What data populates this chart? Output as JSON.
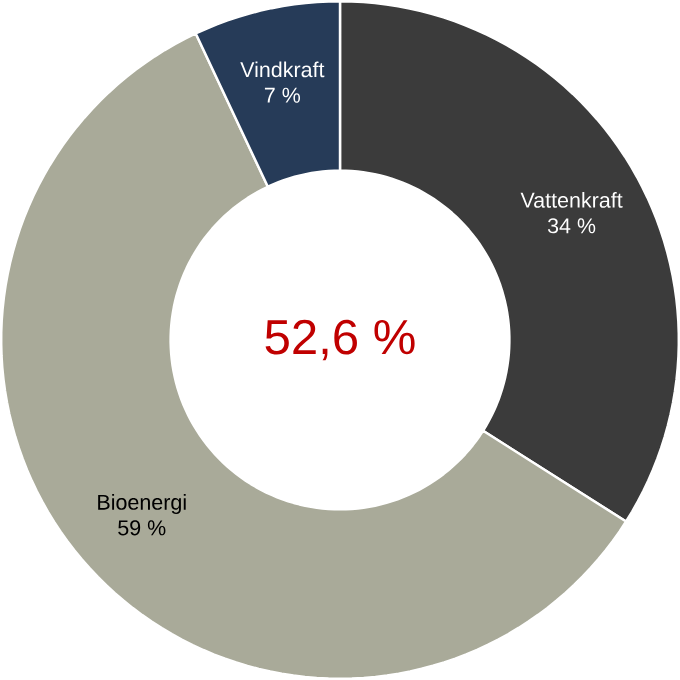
{
  "chart_data": {
    "type": "donut",
    "categories": [
      "Vattenkraft",
      "Bioenergi",
      "Vindkraft"
    ],
    "values": [
      34,
      59,
      7
    ],
    "colors": [
      "#3b3b3b",
      "#a9aa99",
      "#263b58"
    ],
    "value_labels": [
      "34 %",
      "59 %",
      "7 %"
    ],
    "annotations": [
      "52,6 %"
    ]
  }
}
